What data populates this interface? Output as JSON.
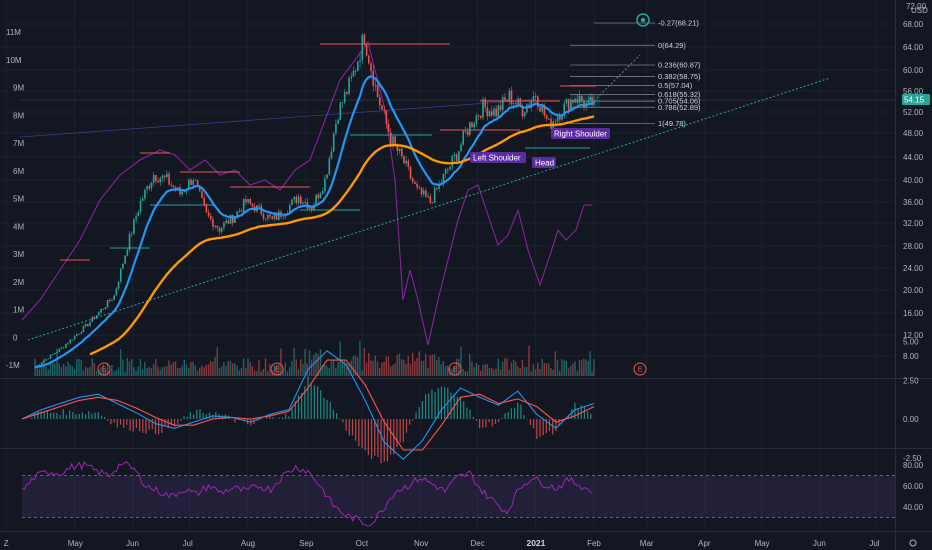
{
  "header": {
    "currency": "USD",
    "top_price": "72.00"
  },
  "colors": {
    "background": "#131722",
    "up": "#26a69a",
    "down": "#ef5350",
    "ema_fast": "#2196f3",
    "ema_slow": "#ff9800",
    "rsi_line": "#9c27b0",
    "macd_line": "#2196f3",
    "signal_line": "#ff5252",
    "fib": "#787b86",
    "pattern_label": "#5b2ca0",
    "price_badge": "#26a69a"
  },
  "chart_data": [
    {
      "type": "candlestick",
      "panel": "price",
      "price_unit": "USD",
      "price_axis": [
        "68.00",
        "64.00",
        "60.00",
        "56.00",
        "52.00",
        "48.00",
        "44.00",
        "40.00",
        "36.00",
        "32.00",
        "28.00",
        "24.00",
        "20.00",
        "16.00",
        "12.00",
        "8.00"
      ],
      "price_range": [
        4,
        72
      ],
      "volume_axis": [
        "11M",
        "10M",
        "9M",
        "8M",
        "7M",
        "6M",
        "5M",
        "4M",
        "3M",
        "2M",
        "1M",
        "0",
        "-1M"
      ],
      "volume_range": [
        -1,
        11
      ],
      "x_axis": [
        "Z",
        "May",
        "Jun",
        "Jul",
        "Aug",
        "Sep",
        "Oct",
        "Nov",
        "Dec",
        "2021",
        "Feb",
        "Mar",
        "Apr",
        "May",
        "Jun",
        "Jul"
      ],
      "last_price": "54.15",
      "ohlc_path": [
        {
          "date": "2020-04-10",
          "close": 6.0
        },
        {
          "date": "2020-04-24",
          "close": 9.5
        },
        {
          "date": "2020-05-08",
          "close": 14.0
        },
        {
          "date": "2020-05-22",
          "close": 19.0
        },
        {
          "date": "2020-05-29",
          "close": 28.0
        },
        {
          "date": "2020-06-05",
          "close": 36.0
        },
        {
          "date": "2020-06-12",
          "close": 41.0
        },
        {
          "date": "2020-06-19",
          "close": 40.0
        },
        {
          "date": "2020-06-26",
          "close": 37.5
        },
        {
          "date": "2020-07-03",
          "close": 40.5
        },
        {
          "date": "2020-07-10",
          "close": 33.5
        },
        {
          "date": "2020-07-17",
          "close": 31.0
        },
        {
          "date": "2020-07-24",
          "close": 33.0
        },
        {
          "date": "2020-07-31",
          "close": 36.0
        },
        {
          "date": "2020-08-07",
          "close": 34.5
        },
        {
          "date": "2020-08-14",
          "close": 32.5
        },
        {
          "date": "2020-08-21",
          "close": 34.5
        },
        {
          "date": "2020-08-28",
          "close": 37.0
        },
        {
          "date": "2020-09-04",
          "close": 35.0
        },
        {
          "date": "2020-09-11",
          "close": 40.0
        },
        {
          "date": "2020-09-18",
          "close": 52.0
        },
        {
          "date": "2020-09-25",
          "close": 58.0
        },
        {
          "date": "2020-10-02",
          "close": 66.0
        },
        {
          "date": "2020-10-09",
          "close": 55.0
        },
        {
          "date": "2020-10-16",
          "close": 47.0
        },
        {
          "date": "2020-10-23",
          "close": 43.0
        },
        {
          "date": "2020-10-30",
          "close": 38.0
        },
        {
          "date": "2020-11-06",
          "close": 36.0
        },
        {
          "date": "2020-11-13",
          "close": 40.5
        },
        {
          "date": "2020-11-20",
          "close": 44.5
        },
        {
          "date": "2020-11-27",
          "close": 49.5
        },
        {
          "date": "2020-12-04",
          "close": 53.0
        },
        {
          "date": "2020-12-11",
          "close": 52.0
        },
        {
          "date": "2020-12-18",
          "close": 55.0
        },
        {
          "date": "2020-12-25",
          "close": 52.5
        },
        {
          "date": "2021-01-01",
          "close": 55.5
        },
        {
          "date": "2021-01-08",
          "close": 49.5
        },
        {
          "date": "2021-01-15",
          "close": 52.5
        },
        {
          "date": "2021-01-22",
          "close": 55.0
        },
        {
          "date": "2021-01-29",
          "close": 53.0
        },
        {
          "date": "2021-02-01",
          "close": 54.15
        }
      ],
      "fibonacci": [
        {
          "label": "-0.27(68.21)",
          "value": 68.21
        },
        {
          "label": "0(64.29)",
          "value": 64.29
        },
        {
          "label": "0.236(60.87)",
          "value": 60.87
        },
        {
          "label": "0.382(58.75)",
          "value": 58.75
        },
        {
          "label": "0.5(57.04)",
          "value": 57.04
        },
        {
          "label": "0.618(55.32)",
          "value": 55.32
        },
        {
          "label": "0.705(54.06)",
          "value": 54.06
        },
        {
          "label": "0.786(52.89)",
          "value": 52.89
        },
        {
          "label": "1(49.78)",
          "value": 49.78
        }
      ],
      "annotations": [
        {
          "text": "Left Shoulder"
        },
        {
          "text": "Head"
        },
        {
          "text": "Right Shoulder"
        }
      ],
      "earnings_marker": "E"
    },
    {
      "type": "line",
      "panel": "macd",
      "axis": [
        "5.00",
        "2.50",
        "0.00",
        "-2.50"
      ],
      "range": [
        -3.5,
        5.5
      ],
      "series": [
        {
          "values": [
            0.0,
            0.6,
            1.0,
            1.4,
            1.6,
            1.0,
            0.4,
            -0.3,
            -0.6,
            -0.2,
            0.2,
            0.1,
            -0.2,
            0.3,
            0.6,
            3.2,
            4.4,
            3.5,
            1.2,
            -1.5,
            -2.6,
            -1.4,
            0.6,
            2.0,
            1.4,
            0.9,
            1.8,
            0.3,
            -0.6,
            0.6,
            1.0
          ]
        },
        {
          "values": [
            0.0,
            0.4,
            0.8,
            1.2,
            1.4,
            1.2,
            0.7,
            0.1,
            -0.4,
            -0.4,
            0.0,
            0.1,
            0.0,
            0.2,
            0.5,
            2.0,
            3.8,
            3.8,
            2.2,
            -0.2,
            -2.0,
            -2.0,
            -0.4,
            1.4,
            1.6,
            1.0,
            1.3,
            0.8,
            -0.2,
            0.2,
            0.8
          ]
        }
      ]
    },
    {
      "type": "line",
      "panel": "rsi",
      "axis": [
        "80.00",
        "60.00",
        "40.00"
      ],
      "range": [
        20,
        90
      ],
      "bands": [
        70,
        30
      ],
      "values": [
        55,
        68,
        74,
        72,
        78,
        80,
        74,
        70,
        82,
        76,
        60,
        55,
        50,
        57,
        52,
        60,
        54,
        58,
        55,
        60,
        57,
        70,
        78,
        74,
        60,
        42,
        32,
        28,
        22,
        38,
        55,
        60,
        68,
        62,
        55,
        68,
        72,
        55,
        45,
        35,
        58,
        68,
        62,
        58,
        66,
        60,
        54
      ]
    }
  ]
}
